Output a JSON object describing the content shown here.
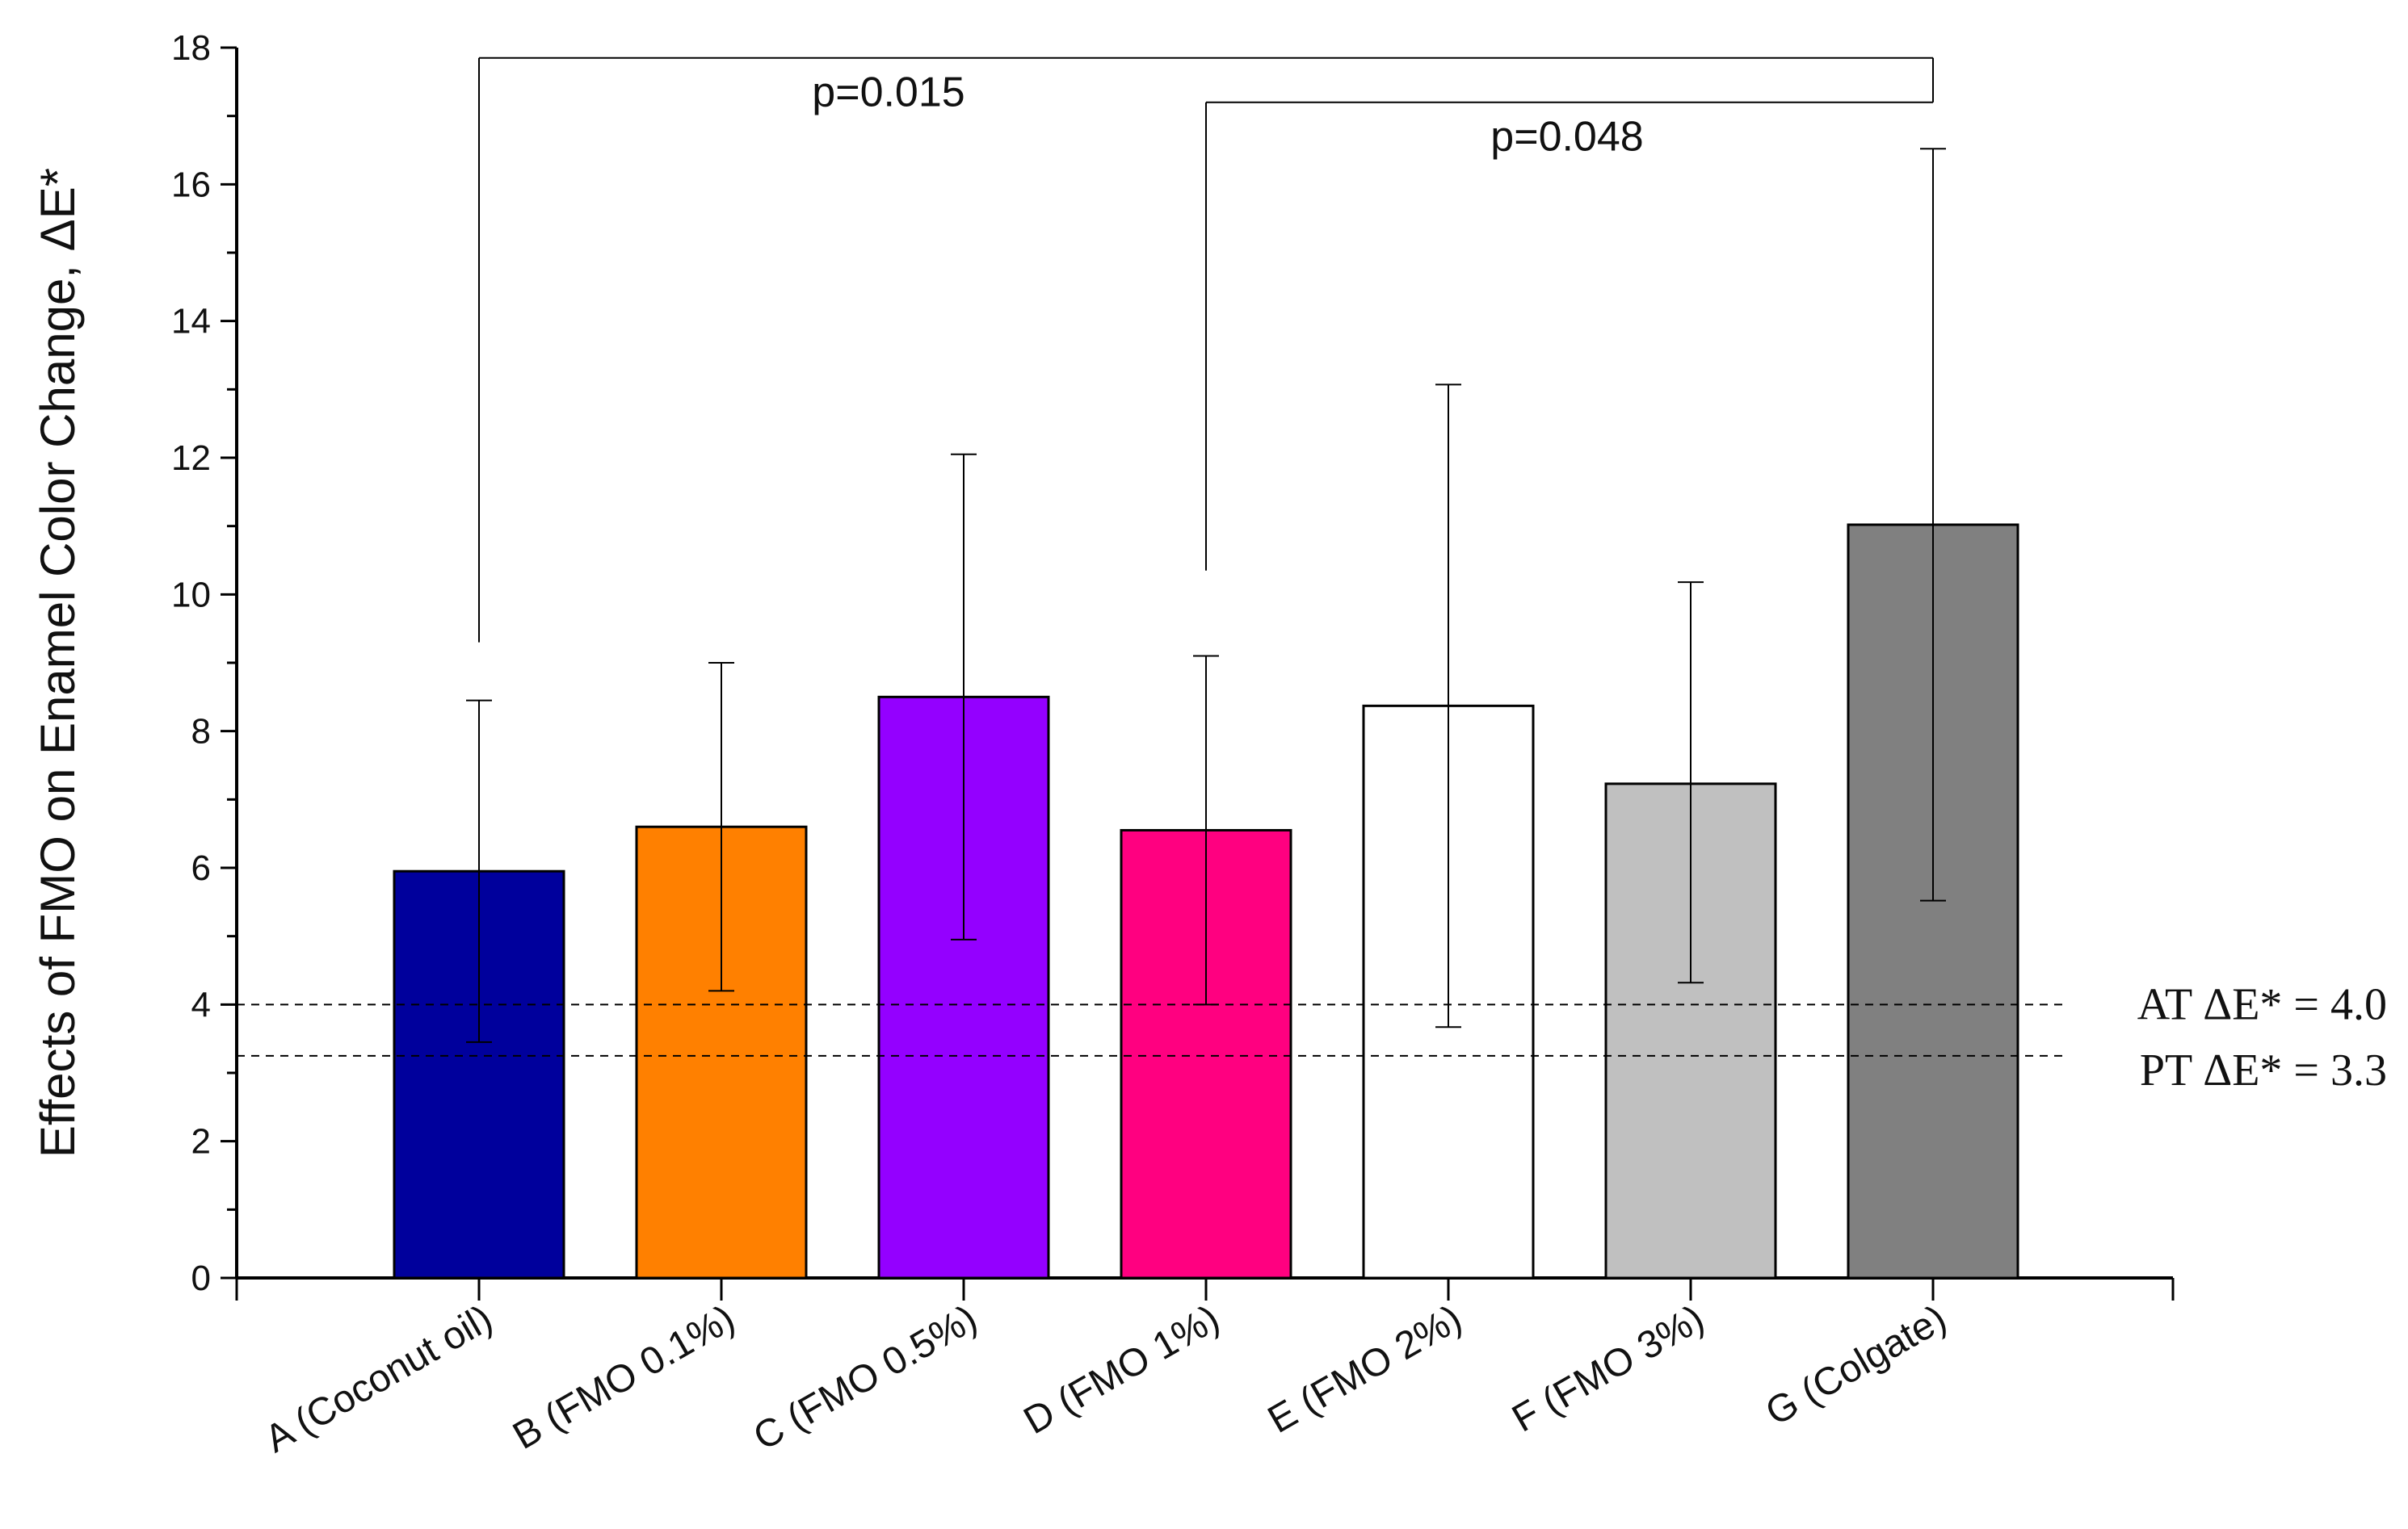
{
  "chart_data": {
    "type": "bar",
    "title": "",
    "xlabel": "",
    "ylabel": "Effects of FMO on Enamel Color Change, ΔE*",
    "ylim": [
      0,
      18
    ],
    "yticks": [
      0,
      2,
      4,
      6,
      8,
      10,
      12,
      14,
      16,
      18
    ],
    "grid": false,
    "categories": [
      "A (Coconut oil)",
      "B (FMO 0.1%)",
      "C (FMO 0.5%)",
      "D (FMO 1%)",
      "E (FMO 2%)",
      "F (FMO 3%)",
      "G (Colgate)"
    ],
    "values": [
      5.95,
      6.6,
      8.5,
      6.55,
      8.37,
      7.23,
      11.02
    ],
    "error_lower": [
      3.45,
      4.2,
      4.95,
      4.0,
      3.67,
      4.32,
      5.52
    ],
    "error_upper": [
      8.45,
      9.0,
      12.05,
      9.1,
      13.07,
      10.18,
      16.52
    ],
    "colors": [
      "#00009c",
      "#ff8000",
      "#9400ff",
      "#ff0080",
      "#ffffff",
      "#c0c0c0",
      "#808080"
    ],
    "reference_lines": [
      {
        "label": "AT ΔE* = 4.0",
        "value": 4.0
      },
      {
        "label": "PT ΔE* = 3.3",
        "value": 3.25
      }
    ],
    "annotations": [
      {
        "text": "p=0.015",
        "from": "A (Coconut oil)",
        "to": "G (Colgate)",
        "bracket_y": 17.85,
        "from_drop": 9.3,
        "to_drop": 17.2
      },
      {
        "text": "p=0.048",
        "from": "D (FMO 1%)",
        "to": "G (Colgate)",
        "bracket_y": 17.2,
        "from_drop": 10.35,
        "to_drop": 17.2
      }
    ]
  }
}
